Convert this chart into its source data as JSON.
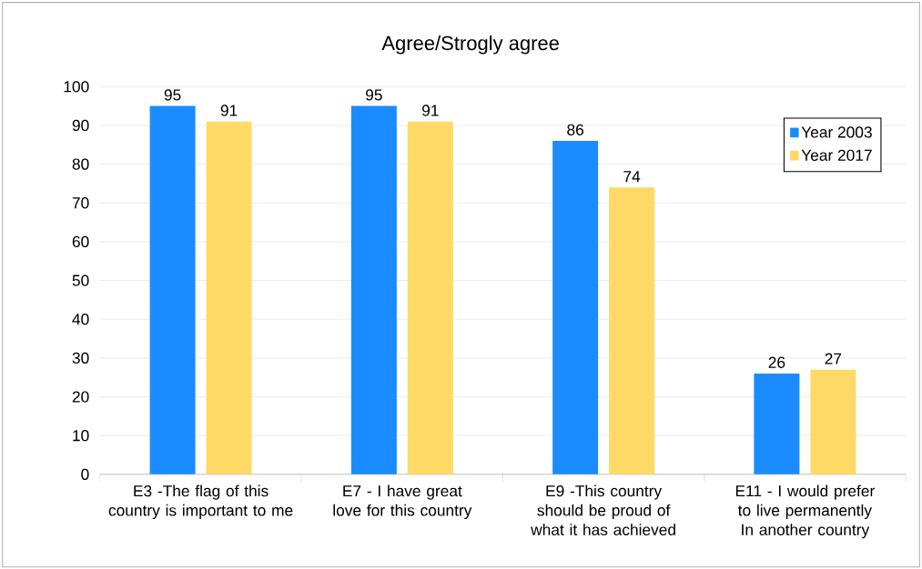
{
  "chart_data": {
    "type": "bar",
    "title": "Agree/Strogly agree",
    "categories": [
      "E3 -The flag of this country is important to me",
      "E7 - I have great love for this country",
      "E9 -This country should be proud of what it has achieved",
      "E11 - I would prefer to live permanently In another country"
    ],
    "series": [
      {
        "name": "Year 2003",
        "color": "#1a8cff",
        "values": [
          95,
          95,
          86,
          26
        ]
      },
      {
        "name": "Year 2017",
        "color": "#ffd966",
        "values": [
          91,
          91,
          74,
          27
        ]
      }
    ],
    "ylim": [
      0,
      100
    ],
    "yticks": [
      0,
      10,
      20,
      30,
      40,
      50,
      60,
      70,
      80,
      90,
      100
    ],
    "grid": "y",
    "legend": "top right",
    "data_labels": true
  }
}
